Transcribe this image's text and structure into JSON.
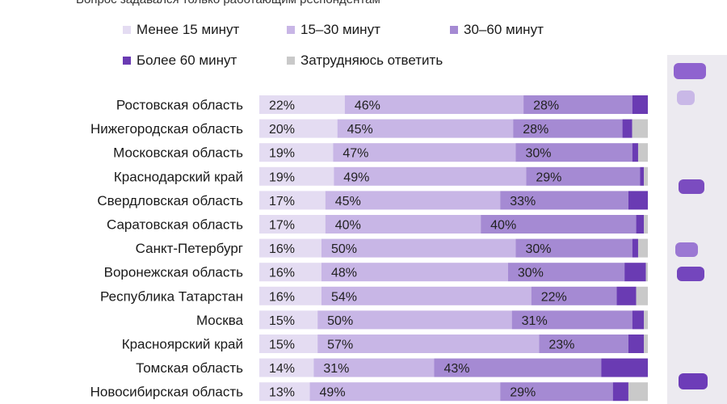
{
  "subtitle": "Вопрос задавался только работающим респондентам",
  "colors": {
    "lt15": "#e4dcf2",
    "m15_30": "#c8b6e6",
    "m30_60": "#a58ad3",
    "gt60": "#6a3bb3",
    "hard": "#c9c9c9",
    "side_ghost": "#8a5cc7"
  },
  "legend": [
    {
      "label": "Менее 15 минут",
      "color_key": "lt15"
    },
    {
      "label": "15–30 минут",
      "color_key": "m15_30"
    },
    {
      "label": "30–60 минут",
      "color_key": "m30_60"
    },
    {
      "label": "Более 60 минут",
      "color_key": "gt60"
    },
    {
      "label": "Затрудняюсь ответить",
      "color_key": "hard"
    }
  ],
  "chart_data": {
    "type": "bar",
    "orientation": "horizontal",
    "stacked": true,
    "percent_axis": [
      0,
      100
    ],
    "categories": [
      "Ростовская область",
      "Нижегородская область",
      "Московская область",
      "Краснодарский край",
      "Свердловская область",
      "Саратовская область",
      "Санкт-Петербург",
      "Воронежская область",
      "Республика Татарстан",
      "Москва",
      "Красноярский край",
      "Томская область",
      "Новосибирская область"
    ],
    "series": [
      {
        "name": "Менее 15 минут",
        "color_key": "lt15",
        "values": [
          22,
          20,
          19,
          19,
          17,
          17,
          16,
          16,
          16,
          15,
          15,
          14,
          13
        ]
      },
      {
        "name": "15–30 минут",
        "color_key": "m15_30",
        "values": [
          46,
          45,
          47,
          49,
          45,
          40,
          50,
          48,
          54,
          50,
          57,
          31,
          49
        ]
      },
      {
        "name": "30–60 минут",
        "color_key": "m30_60",
        "values": [
          28,
          28,
          30,
          29,
          33,
          40,
          30,
          30,
          22,
          31,
          23,
          43,
          29
        ]
      },
      {
        "name": "Более 60 минут",
        "color_key": "gt60",
        "values": [
          4,
          2.5,
          1.5,
          1,
          5,
          2,
          1.5,
          5.5,
          5,
          3,
          4,
          12,
          4
        ]
      },
      {
        "name": "Затрудняюсь ответить",
        "color_key": "hard",
        "values": [
          0,
          4,
          2.5,
          1,
          0,
          1,
          2.5,
          0.5,
          3,
          1,
          1,
          0,
          5
        ]
      }
    ],
    "labeled_series_count": 3,
    "value_suffix": "%"
  }
}
